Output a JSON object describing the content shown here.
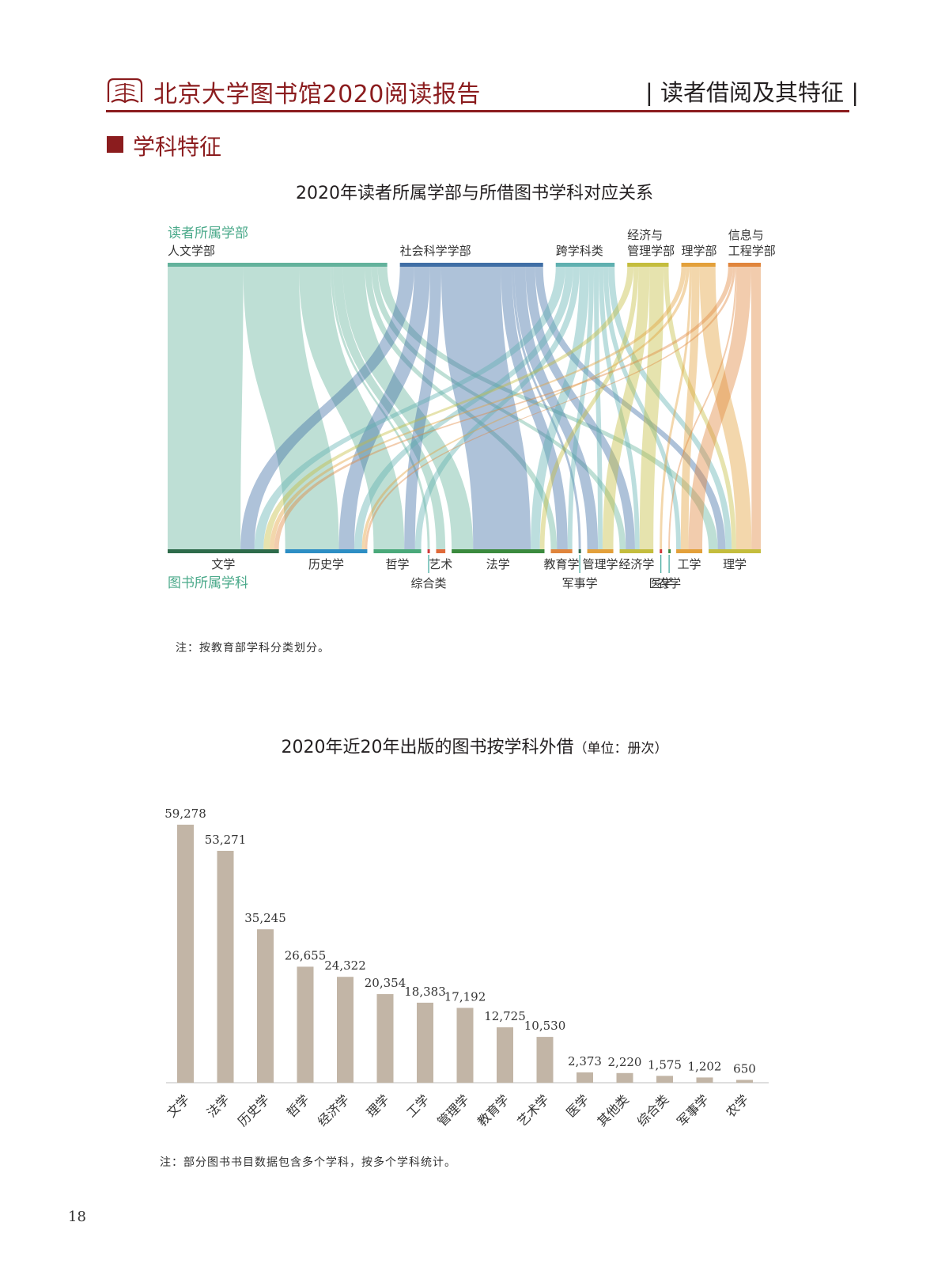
{
  "header": {
    "report_title": "北京大学图书馆2020阅读报告",
    "section_tag": "| 读者借阅及其特征 |"
  },
  "section": {
    "title": "学科特征"
  },
  "sankey": {
    "title": "2020年读者所属学部与所借图书学科对应关系",
    "top_axis_label": "读者所属学部",
    "bottom_axis_label": "图书所属学科",
    "note": "注：按教育部学科分类划分。",
    "colors": {
      "人文学部": "#63b29c",
      "社会科学学部": "#3f6ea5",
      "跨学科类": "#5fb0b0",
      "经济与管理学部": "#c4bd3d",
      "理学部": "#e3a03a",
      "信息与工程学部": "#e0853c"
    },
    "sources": [
      {
        "name": "人文学部",
        "line1": "",
        "line2": "人文学部"
      },
      {
        "name": "社会科学学部",
        "line1": "",
        "line2": "社会科学学部"
      },
      {
        "name": "跨学科类",
        "line1": "",
        "line2": "跨学科类"
      },
      {
        "name": "经济与管理学部",
        "line1": "经济与",
        "line2": "管理学部"
      },
      {
        "name": "理学部",
        "line1": "",
        "line2": "理学部"
      },
      {
        "name": "信息与工程学部",
        "line1": "信息与",
        "line2": "工程学部"
      }
    ],
    "targets": [
      {
        "name": "文学",
        "color": "#2e6b4b",
        "label_row": 1
      },
      {
        "name": "历史学",
        "color": "#2d8ec4",
        "label_row": 1
      },
      {
        "name": "哲学",
        "color": "#4aa97a",
        "label_row": 1
      },
      {
        "name": "综合类",
        "color": "#d03a3a",
        "label_row": 2
      },
      {
        "name": "艺术",
        "color": "#e06a3a",
        "label_row": 1
      },
      {
        "name": "法学",
        "color": "#3b8a3e",
        "label_row": 1
      },
      {
        "name": "教育学",
        "color": "#e0853c",
        "label_row": 1
      },
      {
        "name": "军事学",
        "color": "#2e6b4b",
        "label_row": 2
      },
      {
        "name": "管理学",
        "color": "#e3a03a",
        "label_row": 1
      },
      {
        "name": "经济学",
        "color": "#c4bd3d",
        "label_row": 1
      },
      {
        "name": "医学",
        "color": "#d03a3a",
        "label_row": 2
      },
      {
        "name": "农学",
        "color": "#3b8a3e",
        "label_row": 2
      },
      {
        "name": "工学",
        "color": "#e3a03a",
        "label_row": 1
      },
      {
        "name": "理学",
        "color": "#c4bd3d",
        "label_row": 1
      }
    ],
    "flows": [
      {
        "source": "人文学部",
        "target": "文学",
        "value": 95
      },
      {
        "source": "人文学部",
        "target": "历史学",
        "value": 70
      },
      {
        "source": "人文学部",
        "target": "哲学",
        "value": 40
      },
      {
        "source": "人文学部",
        "target": "艺术",
        "value": 12
      },
      {
        "source": "人文学部",
        "target": "法学",
        "value": 28
      },
      {
        "source": "人文学部",
        "target": "教育学",
        "value": 8
      },
      {
        "source": "人文学部",
        "target": "经济学",
        "value": 8
      },
      {
        "source": "人文学部",
        "target": "理学",
        "value": 12
      },
      {
        "source": "人文学部",
        "target": "综合类",
        "value": 3
      },
      {
        "source": "社会科学学部",
        "target": "文学",
        "value": 18
      },
      {
        "source": "社会科学学部",
        "target": "历史学",
        "value": 20
      },
      {
        "source": "社会科学学部",
        "target": "哲学",
        "value": 14
      },
      {
        "source": "社会科学学部",
        "target": "法学",
        "value": 75
      },
      {
        "source": "社会科学学部",
        "target": "教育学",
        "value": 14
      },
      {
        "source": "社会科学学部",
        "target": "管理学",
        "value": 14
      },
      {
        "source": "社会科学学部",
        "target": "经济学",
        "value": 12
      },
      {
        "source": "社会科学学部",
        "target": "理学",
        "value": 10
      },
      {
        "source": "社会科学学部",
        "target": "军事学",
        "value": 3
      },
      {
        "source": "跨学科类",
        "target": "文学",
        "value": 12
      },
      {
        "source": "跨学科类",
        "target": "历史学",
        "value": 10
      },
      {
        "source": "跨学科类",
        "target": "哲学",
        "value": 8
      },
      {
        "source": "跨学科类",
        "target": "法学",
        "value": 12
      },
      {
        "source": "跨学科类",
        "target": "教育学",
        "value": 6
      },
      {
        "source": "跨学科类",
        "target": "管理学",
        "value": 6
      },
      {
        "source": "跨学科类",
        "target": "经济学",
        "value": 6
      },
      {
        "source": "跨学科类",
        "target": "工学",
        "value": 6
      },
      {
        "source": "跨学科类",
        "target": "理学",
        "value": 8
      },
      {
        "source": "经济与管理学部",
        "target": "文学",
        "value": 8
      },
      {
        "source": "经济与管理学部",
        "target": "法学",
        "value": 6
      },
      {
        "source": "经济与管理学部",
        "target": "管理学",
        "value": 14
      },
      {
        "source": "经济与管理学部",
        "target": "经济学",
        "value": 18
      },
      {
        "source": "经济与管理学部",
        "target": "理学",
        "value": 6
      },
      {
        "source": "理学部",
        "target": "文学",
        "value": 6
      },
      {
        "source": "理学部",
        "target": "历史学",
        "value": 4
      },
      {
        "source": "理学部",
        "target": "工学",
        "value": 10
      },
      {
        "source": "理学部",
        "target": "理学",
        "value": 20
      },
      {
        "source": "理学部",
        "target": "医学",
        "value": 3
      },
      {
        "source": "信息与工程学部",
        "target": "文学",
        "value": 6
      },
      {
        "source": "信息与工程学部",
        "target": "历史学",
        "value": 3
      },
      {
        "source": "信息与工程学部",
        "target": "工学",
        "value": 18
      },
      {
        "source": "信息与工程学部",
        "target": "理学",
        "value": 12
      },
      {
        "source": "信息与工程学部",
        "target": "农学",
        "value": 2
      }
    ]
  },
  "chart_data": {
    "type": "bar",
    "title": "2020年近20年出版的图书按学科外借",
    "unit": "（单位：册次）",
    "categories": [
      "文学",
      "法学",
      "历史学",
      "哲学",
      "经济学",
      "理学",
      "工学",
      "管理学",
      "教育学",
      "艺术学",
      "医学",
      "其他类",
      "综合类",
      "军事学",
      "农学"
    ],
    "values": [
      59278,
      53271,
      35245,
      26655,
      24322,
      20354,
      18383,
      17192,
      12725,
      10530,
      2373,
      2220,
      1575,
      1202,
      650
    ],
    "value_labels": [
      "59,278",
      "53,271",
      "35,245",
      "26,655",
      "24,322",
      "20,354",
      "18,383",
      "17,192",
      "12,725",
      "10,530",
      "2,373",
      "2,220",
      "1,575",
      "1,202",
      "650"
    ],
    "ylim": [
      0,
      60000
    ],
    "bar_color": "#c2b5a6",
    "note": "注：部分图书书目数据包含多个学科，按多个学科统计。"
  },
  "page_number": "18"
}
